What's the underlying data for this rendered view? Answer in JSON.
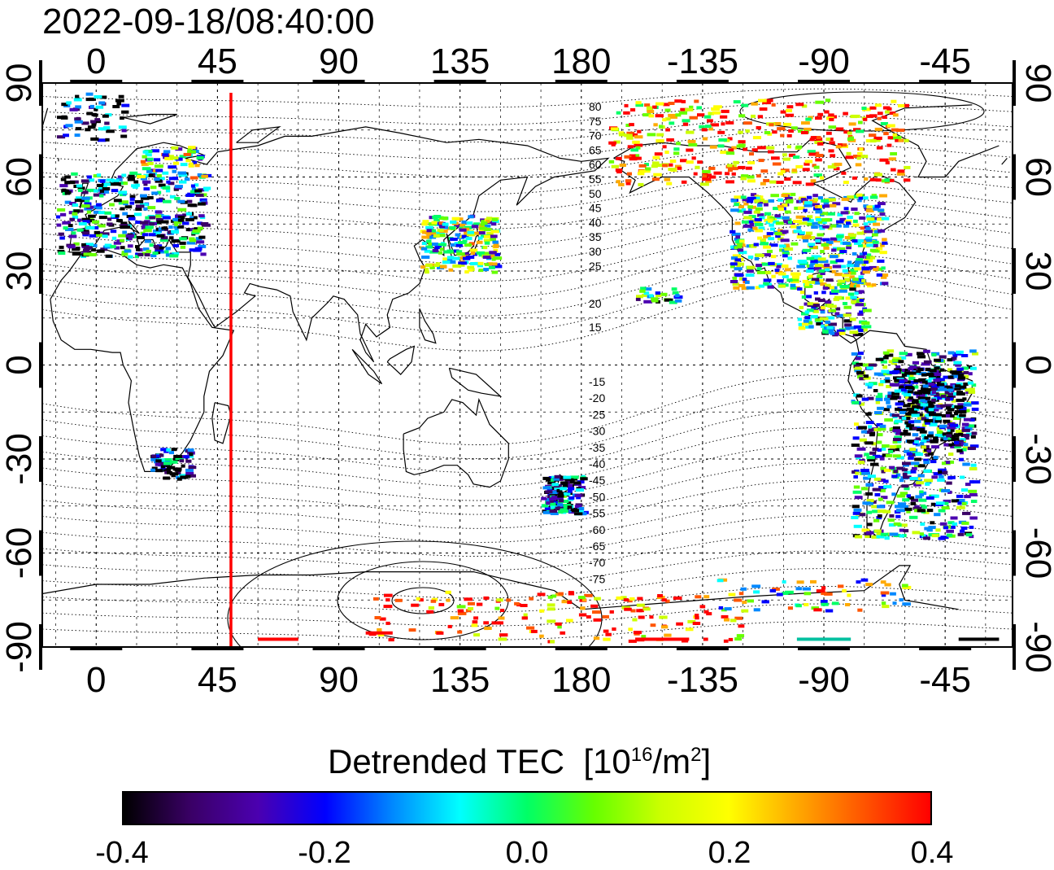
{
  "title": "2022-09-18/08:40:00",
  "map": {
    "lon_ticks": [
      "0",
      "45",
      "90",
      "135",
      "180",
      "-135",
      "-90",
      "-45"
    ],
    "lat_ticks_left": [
      "90",
      "60",
      "30",
      "0",
      "-30",
      "-60",
      "-90"
    ],
    "lat_ticks_right": [
      "90",
      "60",
      "30",
      "0",
      "-30",
      "-60",
      "-90"
    ],
    "lon_range": [
      -20,
      340
    ],
    "lat_range": [
      -90,
      90
    ],
    "terminator_longitude": 50,
    "terminator_color": "#ff0000",
    "contour_labels_north": [
      "80",
      "75",
      "70",
      "65",
      "60",
      "55",
      "50",
      "45",
      "40",
      "35",
      "30",
      "25",
      "20",
      "15"
    ],
    "contour_labels_south": [
      "-15",
      "-20",
      "-25",
      "-30",
      "-35",
      "-40",
      "-45",
      "-50",
      "-55",
      "-60",
      "-65",
      "-70",
      "-75"
    ]
  },
  "colorbar": {
    "title": "Detrended TEC",
    "unit_prefix": "[10",
    "unit_exponent": "16",
    "unit_suffix": "/m",
    "unit_exponent2": "2",
    "unit_close": "]",
    "ticks": [
      "-0.4",
      "-0.2",
      "0.0",
      "0.2",
      "0.4"
    ],
    "min": -0.4,
    "max": 0.4,
    "colors": [
      "#000000",
      "#3a0066",
      "#4b00b0",
      "#0000ff",
      "#0088ff",
      "#00ffff",
      "#00ff66",
      "#66ff00",
      "#ccff00",
      "#ffff00",
      "#ffaa00",
      "#ff5500",
      "#ff0000"
    ]
  }
}
